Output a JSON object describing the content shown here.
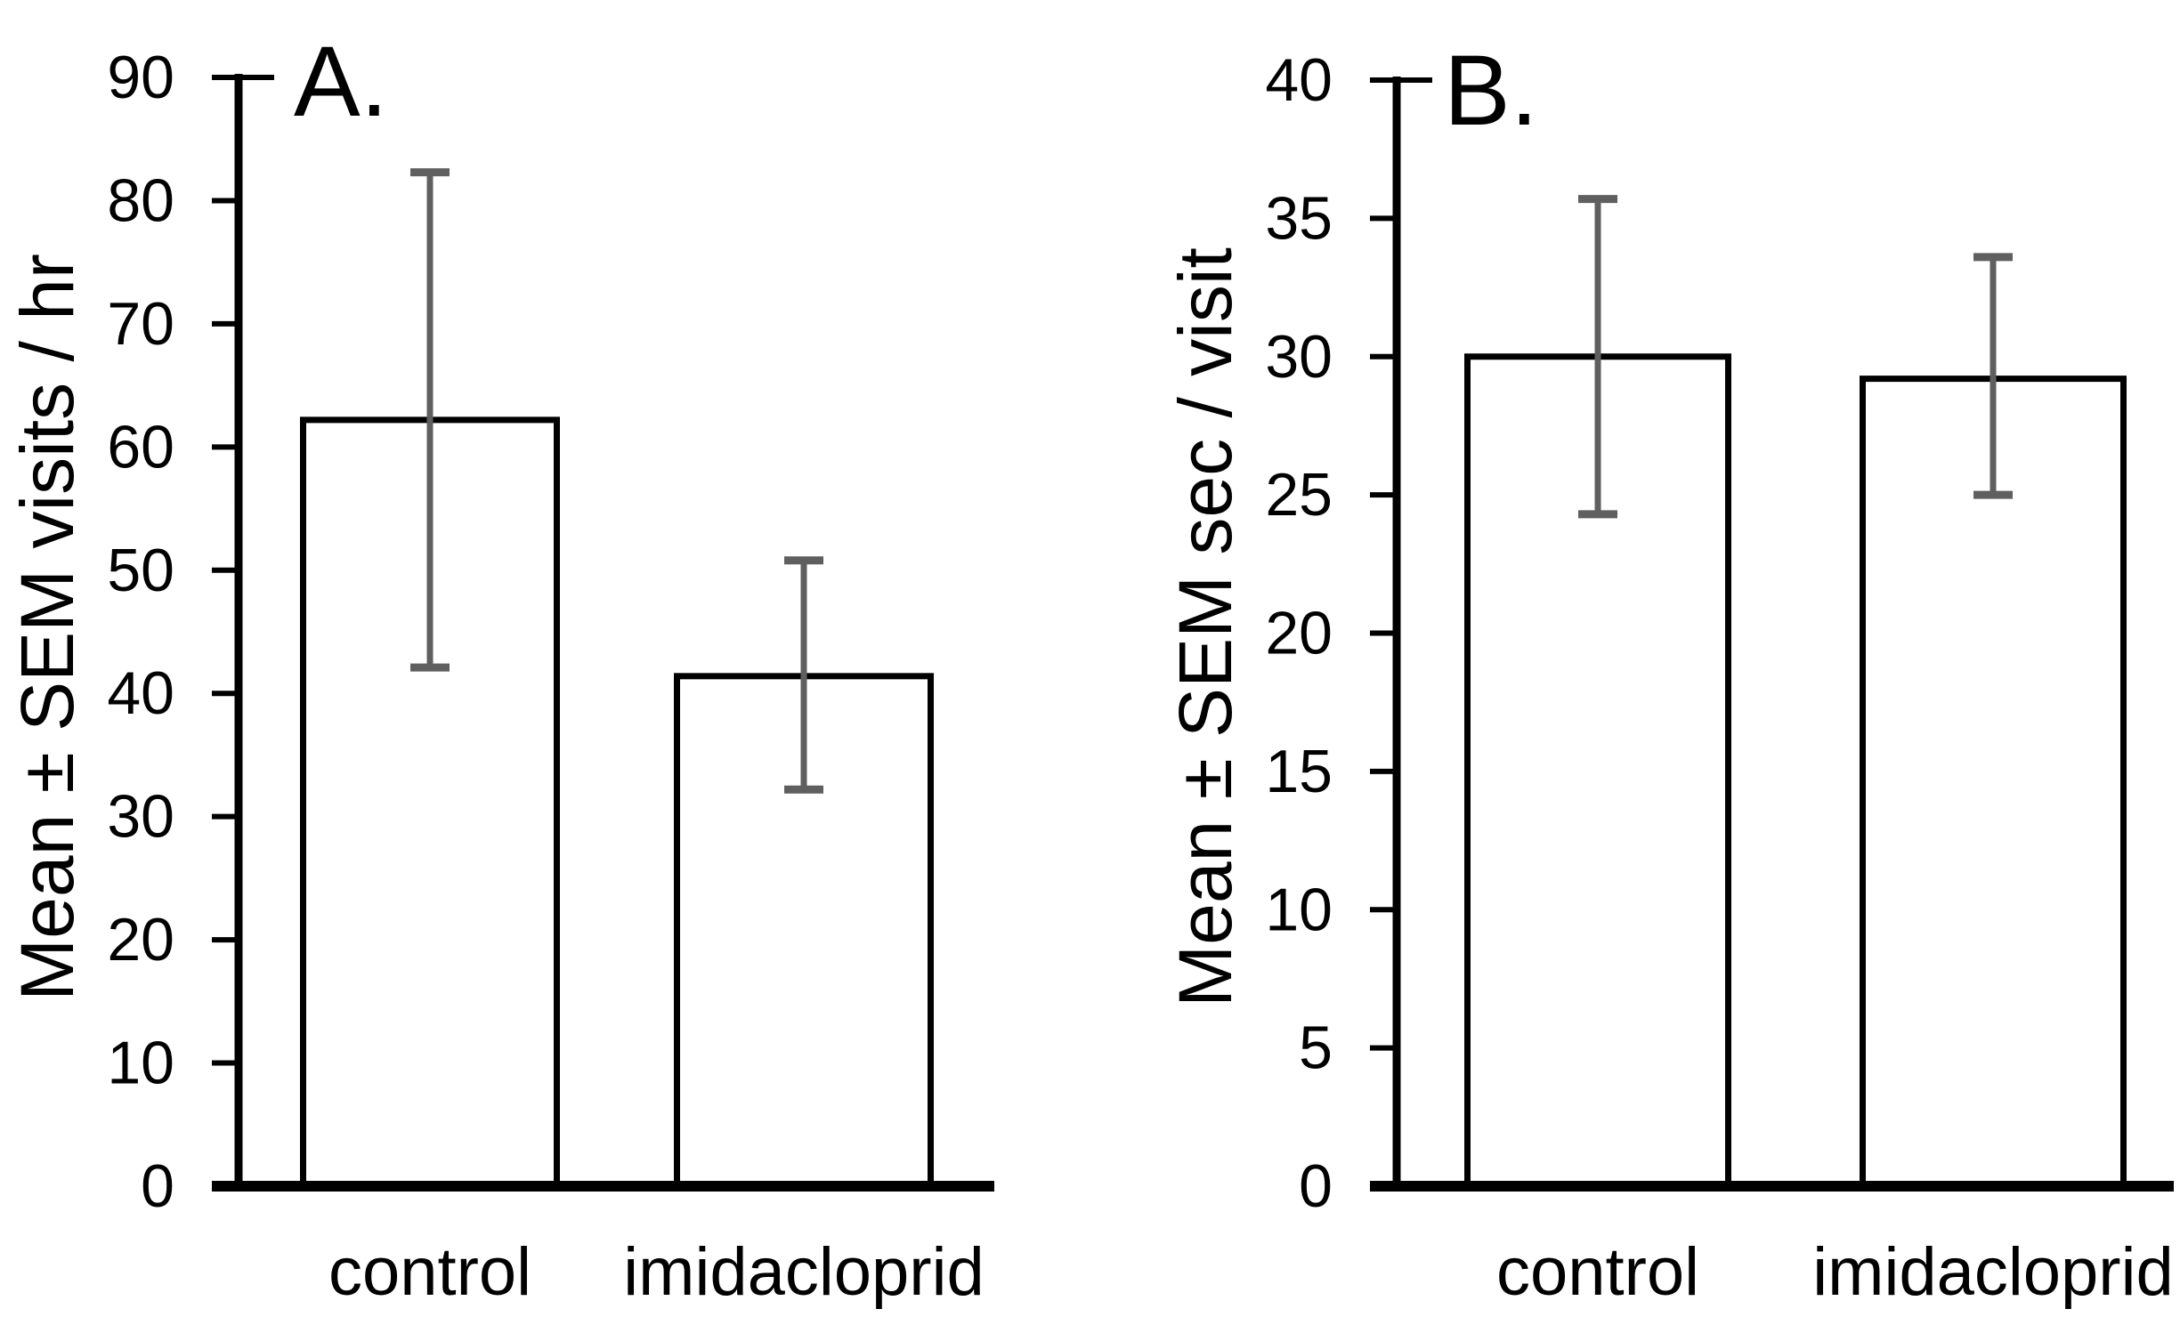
{
  "figure": {
    "background": "#ffffff",
    "axis_color": "#000000",
    "bar_fill": "#ffffff",
    "bar_stroke": "#000000",
    "error_bar_color": "#5f5f5f",
    "text_color": "#000000"
  },
  "chart_data": [
    {
      "type": "bar",
      "panel_label": "A.",
      "title": "",
      "xlabel": "",
      "ylabel": "Mean ± SEM visits / hr",
      "categories": [
        "control",
        "imidacloprid"
      ],
      "values": [
        62.2,
        41.4
      ],
      "error_upper": [
        82.3,
        50.8
      ],
      "error_lower": [
        42.1,
        32.2
      ],
      "ylim": [
        0,
        90
      ],
      "ytick_step": 10,
      "ytick_labels": [
        "0",
        "10",
        "20",
        "30",
        "40",
        "50",
        "60",
        "70",
        "80",
        "90"
      ],
      "grid": false,
      "legend_position": "none"
    },
    {
      "type": "bar",
      "panel_label": "B.",
      "title": "",
      "xlabel": "",
      "ylabel": "Mean ± SEM sec / visit",
      "categories": [
        "control",
        "imidacloprid"
      ],
      "values": [
        30.0,
        29.2
      ],
      "error_upper": [
        35.7,
        33.6
      ],
      "error_lower": [
        24.3,
        25.0
      ],
      "ylim": [
        0,
        40
      ],
      "ytick_step": 5,
      "ytick_labels": [
        "0",
        "5",
        "10",
        "15",
        "20",
        "25",
        "30",
        "35",
        "40"
      ],
      "grid": false,
      "legend_position": "none"
    }
  ]
}
